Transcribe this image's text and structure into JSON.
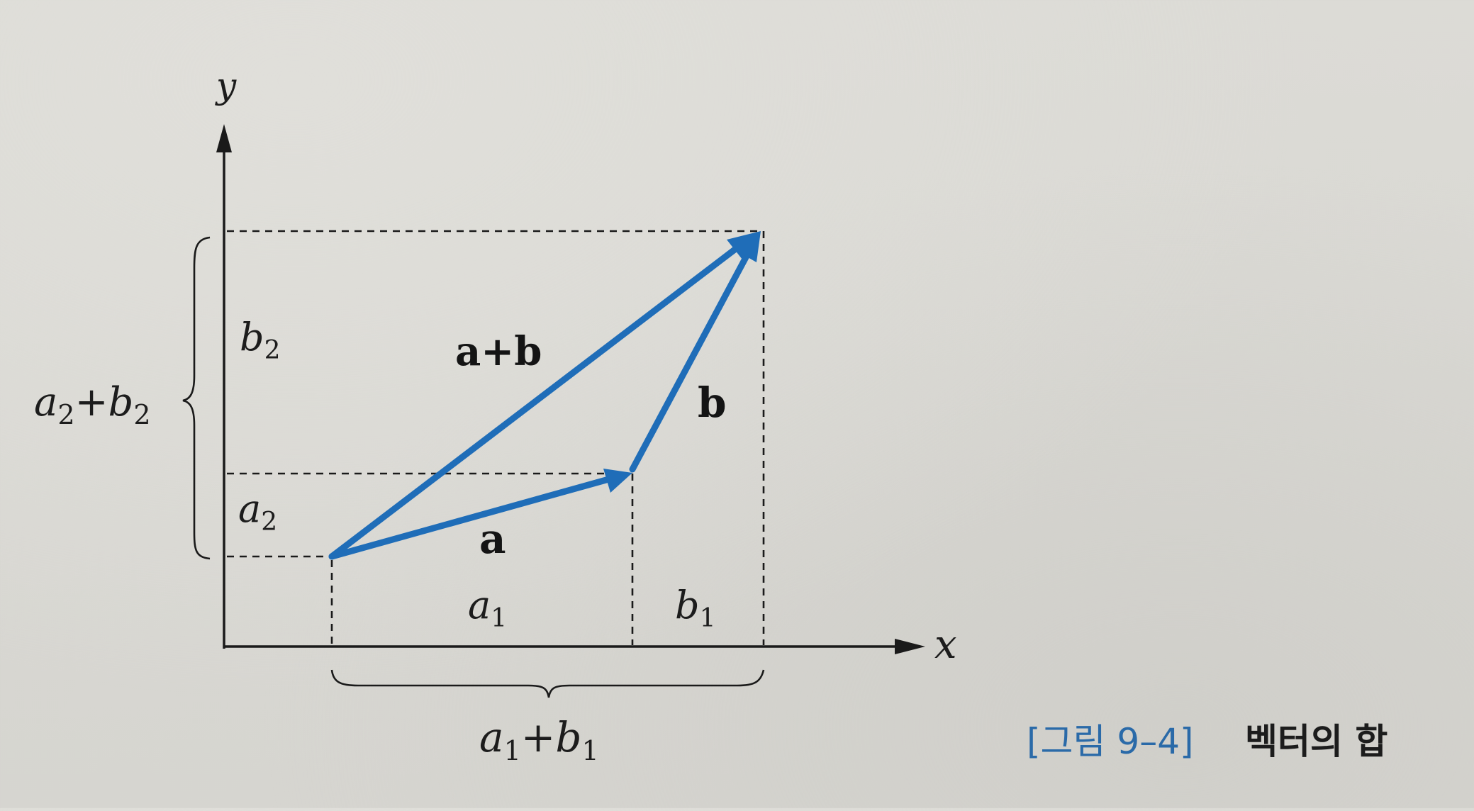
{
  "diagram": {
    "axes": {
      "x": "x",
      "y": "y"
    },
    "vectors": {
      "a": "a",
      "b": "b",
      "sum": "a+b"
    },
    "components": {
      "a1": {
        "base": "a",
        "sub": "1"
      },
      "b1": {
        "base": "b",
        "sub": "1"
      },
      "a2": {
        "base": "a",
        "sub": "2"
      },
      "b2": {
        "base": "b",
        "sub": "2"
      },
      "a1_plus_b1": {
        "base1": "a",
        "sub1": "1",
        "op": "+",
        "base2": "b",
        "sub2": "1"
      },
      "a2_plus_b2": {
        "base1": "a",
        "sub1": "2",
        "op": "+",
        "base2": "b",
        "sub2": "2"
      }
    },
    "vector_color": "#1f6db8"
  },
  "caption": {
    "label": "[그림 9–4]",
    "title": "벡터의 합",
    "label_color": "#2a6aa8"
  }
}
